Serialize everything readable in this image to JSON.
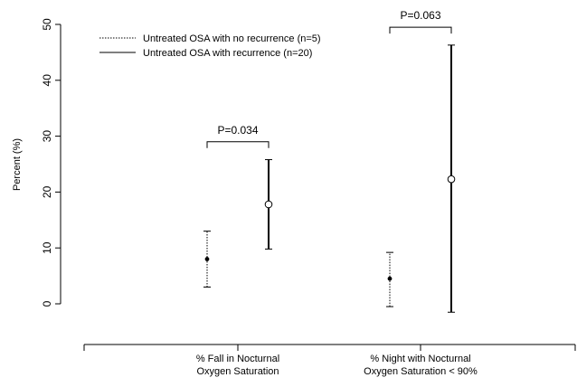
{
  "chart_data": {
    "type": "errorbar",
    "ylabel": "Percent (%)",
    "ylim": [
      0,
      50
    ],
    "yticks": [
      "0",
      "10",
      "20",
      "30",
      "40",
      "50"
    ],
    "categories": [
      [
        "% Fall in Nocturnal",
        "Oxygen Saturation"
      ],
      [
        "% Night with Nocturnal",
        "Oxygen Saturation < 90%"
      ]
    ],
    "series": [
      {
        "name": "Untreated OSA with no recurrence (n=5)",
        "style": "dotted",
        "marker": "filled-dot",
        "points": [
          {
            "mean": 8.0,
            "low": 3.0,
            "high": 13.0
          },
          {
            "mean": 4.5,
            "low": -0.5,
            "high": 9.2
          }
        ]
      },
      {
        "name": "Untreated OSA with recurrence (n=20)",
        "style": "solid",
        "marker": "open-circle",
        "points": [
          {
            "mean": 17.8,
            "low": 9.8,
            "high": 25.8
          },
          {
            "mean": 22.3,
            "low": -1.5,
            "high": 46.3
          }
        ]
      }
    ],
    "annotations": [
      {
        "category": 0,
        "text": "P=0.034",
        "y": 29.0
      },
      {
        "category": 1,
        "text": "P=0.063",
        "y": 49.5
      }
    ]
  }
}
